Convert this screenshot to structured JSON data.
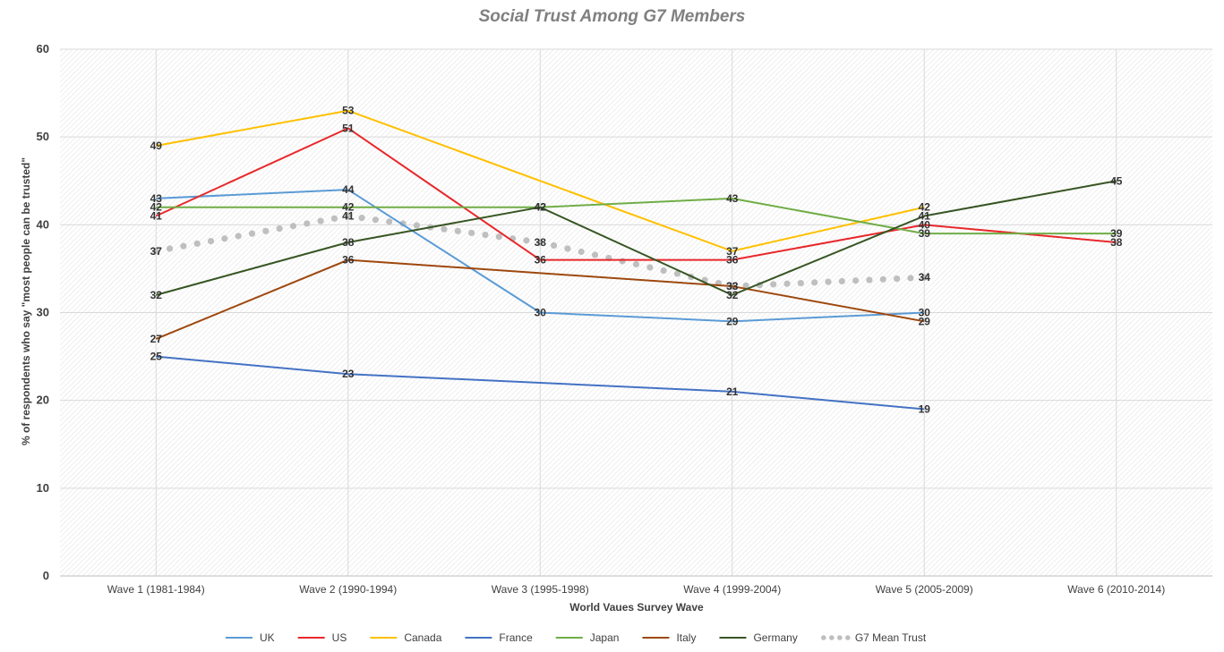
{
  "chart_data": {
    "type": "line",
    "title": "Social Trust Among G7 Members",
    "xlabel": "World Vaues Survey Wave",
    "ylabel": "% of respondents who say \"most people can be trusted\"",
    "ylim": [
      0,
      60
    ],
    "yticks": [
      "0",
      "10",
      "20",
      "30",
      "40",
      "50",
      "60"
    ],
    "categories": [
      "Wave 1 (1981-1984)",
      "Wave 2 (1990-1994)",
      "Wave 3 (1995-1998)",
      "Wave 4 (1999-2004)",
      "Wave 5 (2005-2009)",
      "Wave 6 (2010-2014)"
    ],
    "grid": true,
    "legend_position": "bottom",
    "series": [
      {
        "name": "UK",
        "color": "#5B9BD5",
        "style": "solid",
        "values": [
          43,
          44,
          30,
          29,
          30,
          null
        ]
      },
      {
        "name": "US",
        "color": "#E8282B",
        "style": "solid",
        "values": [
          41,
          51,
          36,
          36,
          40,
          38
        ]
      },
      {
        "name": "Canada",
        "color": "#FFC000",
        "style": "solid",
        "values": [
          49,
          53,
          null,
          37,
          42,
          null
        ]
      },
      {
        "name": "France",
        "color": "#4472C4",
        "style": "solid",
        "values": [
          25,
          23,
          null,
          21,
          19,
          null
        ]
      },
      {
        "name": "Japan",
        "color": "#70AD47",
        "style": "solid",
        "values": [
          42,
          42,
          42,
          43,
          39,
          39
        ]
      },
      {
        "name": "Italy",
        "color": "#9E480E",
        "style": "solid",
        "values": [
          27,
          36,
          null,
          33,
          29,
          null
        ]
      },
      {
        "name": "Germany",
        "color": "#375623",
        "style": "solid",
        "values": [
          32,
          38,
          42,
          32,
          41,
          45
        ]
      },
      {
        "name": "G7 Mean Trust",
        "color": "#BFBFBF",
        "style": "dotted",
        "values": [
          37,
          41,
          38,
          33,
          34,
          null
        ]
      }
    ]
  }
}
